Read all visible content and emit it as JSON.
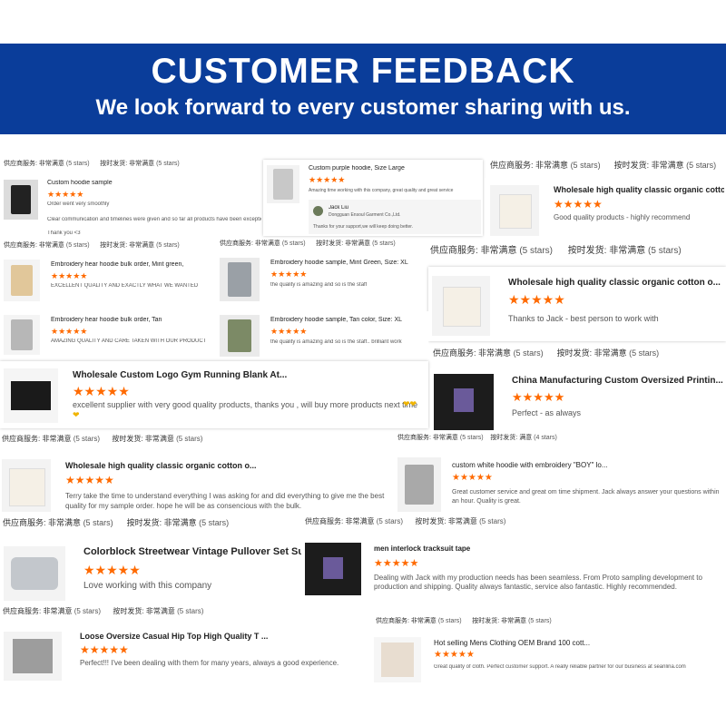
{
  "banner": {
    "title": "CUSTOMER FEEDBACK",
    "subtitle": "We look forward to every customer sharing with us."
  },
  "labels": {
    "service": "供应商服务:",
    "shipping": "按时发货:",
    "rating": "非常满意",
    "rating_alt": "满意",
    "stars5": "(5 stars)",
    "stars4": "(4 stars)",
    "stars_icon": "★★★★★"
  },
  "reviews": [
    {
      "product": "Custom hoodie sample",
      "comment": "Order went very smoothly",
      "comment2": "Clear communication and timelines were given and so far all products have been exceptional",
      "comment3": "Thank you <3"
    },
    {
      "product": "Custom purple hoodie, Size Large",
      "comment": "Amazing time working with this company, great quality and great service",
      "reply_name": "Jack Liu",
      "reply_company": "Dongguan Ensoul Garment Co.,Ltd.",
      "reply_text": "Thanks for your support,we will keep doing better."
    },
    {
      "product": "Wholesale high quality classic organic cotton o...",
      "comment": "Good quality products - highly recommend"
    },
    {
      "product": "Embroidery hear hoodie bulk order, Mint green,",
      "comment": "EXCELLENT QUALITY AND EXACTLY WHAT WE WANTED"
    },
    {
      "product": "Embroidery hoodie sample, Mint Green, Size: XL",
      "comment": "the quality is amazing and so is the staff"
    },
    {
      "product": "Wholesale high quality classic organic cotton o...",
      "comment": "Thanks to Jack - best person to work with"
    },
    {
      "product": "Embroidery hear hoodie bulk order, Tan",
      "comment": "AMAZING QUALITY AND CARE TAKEN WITH OUR PRODUCT"
    },
    {
      "product": "Embroidery hoodie sample, Tan color, Size: XL",
      "comment": "the quality is amazing and so is the staff.. brilliant work"
    },
    {
      "product": "Wholesale Custom Logo Gym Running Blank At...",
      "comment": "excellent supplier with very good quality products, thanks you ,  will buy more products next time"
    },
    {
      "product": "China Manufacturing Custom Oversized Printin...",
      "comment": "Perfect - as always"
    },
    {
      "product": "Wholesale high quality classic organic cotton o...",
      "comment": "Terry take the time to understand everything I was asking for and did everything to give me the best quality for my sample order. hope he will be as consencious with the bulk."
    },
    {
      "product": "custom white hoodie with embroidery \"BOY\" lo...",
      "comment": "Great customer service and great om time shipment. Jack always answer your questions within an hour. Quality is great."
    },
    {
      "product": "Colorblock Streetwear Vintage Pullover Set Sui...",
      "comment": "Love working with this company"
    },
    {
      "product": "men interlock tracksuit tape",
      "comment": "Dealing with Jack with my production needs has been seamless. From Proto sampling development to production and shipping. Quality always fantastic, service also fantastic. Highly recommended."
    },
    {
      "product": "Loose Oversize Casual Hip Top High Quality T ...",
      "comment": "Perfect!!! I've been dealing with them for many years, always a good experience."
    },
    {
      "product": "Hot selling Mens Clothing OEM Brand 100 cott...",
      "comment": "Great quality of cloth. Perfect customer support. A really reliable partner for our business at seanlina.com"
    }
  ],
  "icons": {
    "heart": "heart-emoji-icon",
    "star": "star-rating-icon"
  },
  "colors": {
    "banner": "#0a3d9a",
    "stars": "#ff6a00"
  }
}
